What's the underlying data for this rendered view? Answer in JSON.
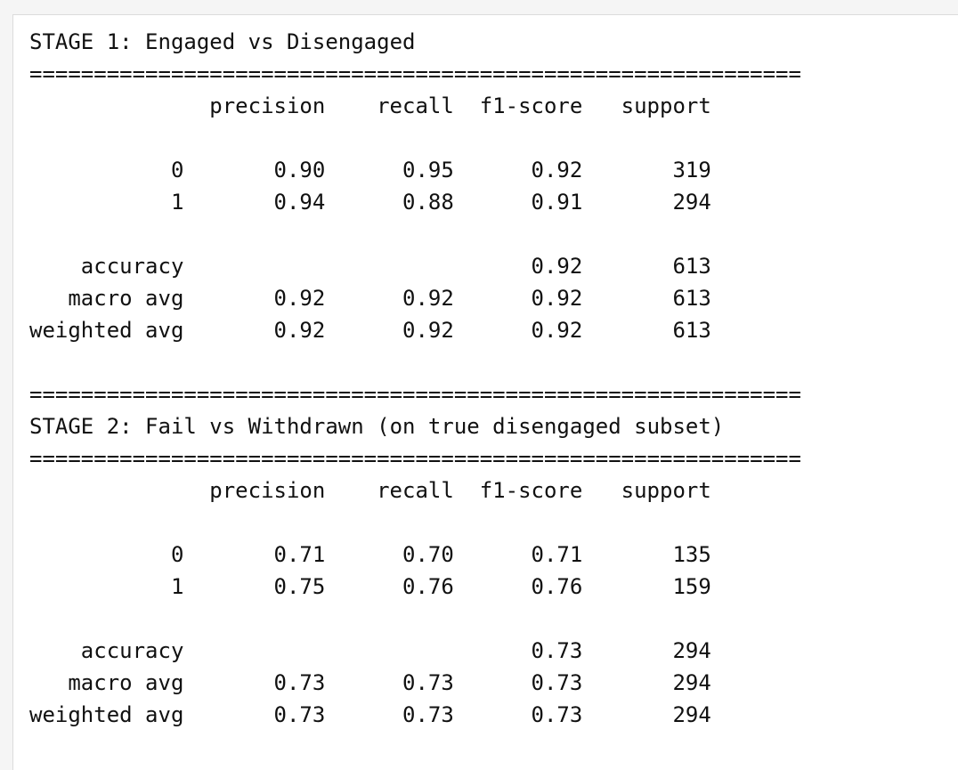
{
  "rule": "============================================================",
  "sections": [
    {
      "title": "STAGE 1: Engaged vs Disengaged",
      "header": [
        "precision",
        "recall",
        "f1-score",
        "support"
      ],
      "class_rows": [
        {
          "label": "0",
          "precision": "0.90",
          "recall": "0.95",
          "f1": "0.92",
          "support": "319"
        },
        {
          "label": "1",
          "precision": "0.94",
          "recall": "0.88",
          "f1": "0.91",
          "support": "294"
        }
      ],
      "summary_rows": [
        {
          "label": "accuracy",
          "f1": "0.92",
          "support": "613"
        },
        {
          "label": "macro avg",
          "precision": "0.92",
          "recall": "0.92",
          "f1": "0.92",
          "support": "613"
        },
        {
          "label": "weighted avg",
          "precision": "0.92",
          "recall": "0.92",
          "f1": "0.92",
          "support": "613"
        }
      ]
    },
    {
      "title": "STAGE 2: Fail vs Withdrawn (on true disengaged subset)",
      "header": [
        "precision",
        "recall",
        "f1-score",
        "support"
      ],
      "class_rows": [
        {
          "label": "0",
          "precision": "0.71",
          "recall": "0.70",
          "f1": "0.71",
          "support": "135"
        },
        {
          "label": "1",
          "precision": "0.75",
          "recall": "0.76",
          "f1": "0.76",
          "support": "159"
        }
      ],
      "summary_rows": [
        {
          "label": "accuracy",
          "f1": "0.73",
          "support": "294"
        },
        {
          "label": "macro avg",
          "precision": "0.73",
          "recall": "0.73",
          "f1": "0.73",
          "support": "294"
        },
        {
          "label": "weighted avg",
          "precision": "0.73",
          "recall": "0.73",
          "f1": "0.73",
          "support": "294"
        }
      ]
    }
  ]
}
